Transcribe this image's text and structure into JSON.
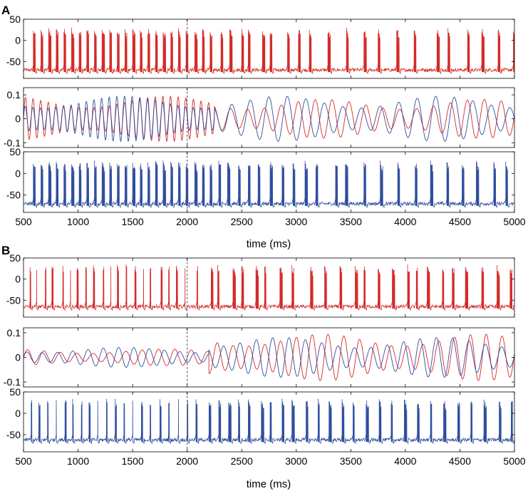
{
  "colors": {
    "red": "#d42a28",
    "blue": "#2f4e9f"
  },
  "chart_data": [
    {
      "panel": "A",
      "type": "line",
      "xlabel": "time (ms)",
      "xlim": [
        500,
        5000
      ],
      "xticks": [
        500,
        1000,
        1500,
        2000,
        2500,
        3000,
        3500,
        4000,
        4500,
        5000
      ],
      "marker_x": 2000,
      "subplots": [
        {
          "kind": "voltage",
          "color": "red",
          "ylim": [
            -90,
            50
          ],
          "yticks": [
            50,
            0,
            -50
          ],
          "baseline": -70,
          "spike_peak": 30,
          "bursts": [
            [
              590,
              4
            ],
            [
              660,
              4
            ],
            [
              730,
              5
            ],
            [
              800,
              4
            ],
            [
              870,
              4
            ],
            [
              940,
              5
            ],
            [
              1010,
              4
            ],
            [
              1080,
              4
            ],
            [
              1150,
              4
            ],
            [
              1220,
              5
            ],
            [
              1290,
              4
            ],
            [
              1360,
              4
            ],
            [
              1430,
              4
            ],
            [
              1500,
              5
            ],
            [
              1570,
              4
            ],
            [
              1640,
              4
            ],
            [
              1710,
              4
            ],
            [
              1780,
              5
            ],
            [
              1850,
              4
            ],
            [
              1920,
              4
            ],
            [
              1990,
              4
            ],
            [
              2070,
              5
            ],
            [
              2140,
              4
            ],
            [
              2210,
              4
            ],
            [
              2310,
              4
            ],
            [
              2390,
              5
            ],
            [
              2500,
              4
            ],
            [
              2560,
              4
            ],
            [
              2690,
              5
            ],
            [
              2760,
              4
            ],
            [
              2920,
              4
            ],
            [
              3020,
              4
            ],
            [
              3120,
              4
            ],
            [
              3290,
              5
            ],
            [
              3460,
              4
            ],
            [
              3620,
              5
            ],
            [
              3750,
              4
            ],
            [
              3920,
              5
            ],
            [
              4080,
              4
            ],
            [
              4290,
              5
            ],
            [
              4390,
              4
            ],
            [
              4570,
              4
            ],
            [
              4700,
              5
            ],
            [
              4850,
              4
            ],
            [
              4990,
              4
            ]
          ]
        },
        {
          "kind": "oscillation",
          "ylim": [
            -0.12,
            0.13
          ],
          "yticks": [
            0.1,
            0,
            -0.1
          ],
          "series": [
            {
              "color": "red",
              "segments": [
                {
                  "from": 500,
                  "to": 2250,
                  "period": 70,
                  "amp": 0.07
                },
                {
                  "from": 2250,
                  "to": 5000,
                  "period": 155,
                  "amp": 0.06
                }
              ]
            },
            {
              "color": "blue",
              "segments": [
                {
                  "from": 500,
                  "to": 2250,
                  "period": 70,
                  "amp": 0.07
                },
                {
                  "from": 2250,
                  "to": 5000,
                  "period": 170,
                  "amp": 0.07
                }
              ]
            }
          ]
        },
        {
          "kind": "voltage",
          "color": "blue",
          "ylim": [
            -90,
            50
          ],
          "yticks": [
            50,
            0,
            -50
          ],
          "baseline": -70,
          "spike_peak": 30,
          "bursts": [
            [
              590,
              4
            ],
            [
              660,
              4
            ],
            [
              730,
              5
            ],
            [
              800,
              4
            ],
            [
              870,
              4
            ],
            [
              940,
              5
            ],
            [
              1010,
              4
            ],
            [
              1080,
              4
            ],
            [
              1150,
              4
            ],
            [
              1220,
              5
            ],
            [
              1290,
              4
            ],
            [
              1360,
              4
            ],
            [
              1430,
              4
            ],
            [
              1500,
              5
            ],
            [
              1570,
              4
            ],
            [
              1640,
              4
            ],
            [
              1710,
              4
            ],
            [
              1780,
              5
            ],
            [
              1850,
              4
            ],
            [
              1920,
              4
            ],
            [
              1990,
              4
            ],
            [
              2070,
              5
            ],
            [
              2140,
              4
            ],
            [
              2210,
              4
            ],
            [
              2290,
              4
            ],
            [
              2370,
              5
            ],
            [
              2470,
              4
            ],
            [
              2560,
              4
            ],
            [
              2650,
              4
            ],
            [
              2760,
              5
            ],
            [
              2870,
              4
            ],
            [
              2970,
              4
            ],
            [
              3080,
              5
            ],
            [
              3180,
              4
            ],
            [
              3360,
              4
            ],
            [
              3450,
              5
            ],
            [
              3620,
              4
            ],
            [
              3770,
              5
            ],
            [
              3930,
              4
            ],
            [
              4090,
              4
            ],
            [
              4230,
              5
            ],
            [
              4380,
              4
            ],
            [
              4520,
              4
            ],
            [
              4650,
              5
            ],
            [
              4810,
              4
            ],
            [
              4920,
              4
            ]
          ]
        }
      ]
    },
    {
      "panel": "B",
      "type": "line",
      "xlabel": "time (ms)",
      "xlim": [
        500,
        5000
      ],
      "xticks": [
        500,
        1000,
        1500,
        2000,
        2500,
        3000,
        3500,
        4000,
        4500,
        5000
      ],
      "marker_x": 2000,
      "subplots": [
        {
          "kind": "voltage",
          "color": "red",
          "ylim": [
            -90,
            50
          ],
          "yticks": [
            50,
            0,
            -50
          ],
          "baseline": -65,
          "spike_peak": 35,
          "bursts": [
            [
              560,
              2
            ],
            [
              620,
              1
            ],
            [
              700,
              2
            ],
            [
              760,
              3
            ],
            [
              860,
              2
            ],
            [
              930,
              1
            ],
            [
              990,
              3
            ],
            [
              1070,
              2
            ],
            [
              1140,
              3
            ],
            [
              1230,
              2
            ],
            [
              1300,
              1
            ],
            [
              1360,
              3
            ],
            [
              1440,
              2
            ],
            [
              1520,
              3
            ],
            [
              1600,
              1
            ],
            [
              1660,
              2
            ],
            [
              1760,
              3
            ],
            [
              1830,
              2
            ],
            [
              1900,
              3
            ],
            [
              1980,
              1
            ],
            [
              2090,
              2
            ],
            [
              2220,
              4
            ],
            [
              2280,
              3
            ],
            [
              2420,
              5
            ],
            [
              2500,
              4
            ],
            [
              2630,
              5
            ],
            [
              2710,
              3
            ],
            [
              2850,
              5
            ],
            [
              2960,
              4
            ],
            [
              3130,
              5
            ],
            [
              3260,
              4
            ],
            [
              3400,
              4
            ],
            [
              3540,
              5
            ],
            [
              3620,
              3
            ],
            [
              3750,
              4
            ],
            [
              3880,
              5
            ],
            [
              4020,
              4
            ],
            [
              4100,
              3
            ],
            [
              4200,
              5
            ],
            [
              4340,
              3
            ],
            [
              4430,
              4
            ],
            [
              4550,
              5
            ],
            [
              4700,
              4
            ],
            [
              4840,
              5
            ],
            [
              4960,
              4
            ]
          ]
        },
        {
          "kind": "oscillation",
          "ylim": [
            -0.12,
            0.12
          ],
          "yticks": [
            0.1,
            0,
            -0.1
          ],
          "series": [
            {
              "color": "red",
              "segments": [
                {
                  "from": 500,
                  "to": 2200,
                  "period": 150,
                  "amp": 0.025
                },
                {
                  "from": 2200,
                  "to": 5000,
                  "period": 145,
                  "amp": 0.07
                }
              ]
            },
            {
              "color": "blue",
              "segments": [
                {
                  "from": 500,
                  "to": 2200,
                  "period": 140,
                  "amp": 0.03
                },
                {
                  "from": 2200,
                  "to": 5000,
                  "period": 150,
                  "amp": 0.06
                }
              ]
            }
          ]
        },
        {
          "kind": "voltage",
          "color": "blue",
          "ylim": [
            -90,
            50
          ],
          "yticks": [
            50,
            0,
            -50
          ],
          "baseline": -62,
          "spike_peak": 35,
          "bursts": [
            [
              570,
              2
            ],
            [
              640,
              3
            ],
            [
              720,
              2
            ],
            [
              800,
              1
            ],
            [
              880,
              3
            ],
            [
              950,
              2
            ],
            [
              1030,
              2
            ],
            [
              1100,
              3
            ],
            [
              1180,
              1
            ],
            [
              1260,
              2
            ],
            [
              1340,
              3
            ],
            [
              1420,
              2
            ],
            [
              1500,
              1
            ],
            [
              1580,
              3
            ],
            [
              1660,
              2
            ],
            [
              1750,
              3
            ],
            [
              1830,
              2
            ],
            [
              1920,
              1
            ],
            [
              2000,
              2
            ],
            [
              2080,
              3
            ],
            [
              2200,
              4
            ],
            [
              2290,
              4
            ],
            [
              2380,
              5
            ],
            [
              2470,
              3
            ],
            [
              2560,
              4
            ],
            [
              2680,
              5
            ],
            [
              2760,
              3
            ],
            [
              2870,
              4
            ],
            [
              2960,
              5
            ],
            [
              3090,
              4
            ],
            [
              3200,
              3
            ],
            [
              3300,
              5
            ],
            [
              3420,
              4
            ],
            [
              3520,
              3
            ],
            [
              3640,
              5
            ],
            [
              3760,
              4
            ],
            [
              3870,
              3
            ],
            [
              3990,
              5
            ],
            [
              4110,
              4
            ],
            [
              4230,
              3
            ],
            [
              4350,
              5
            ],
            [
              4480,
              4
            ],
            [
              4600,
              3
            ],
            [
              4720,
              5
            ],
            [
              4860,
              4
            ],
            [
              4970,
              3
            ]
          ]
        }
      ]
    }
  ]
}
